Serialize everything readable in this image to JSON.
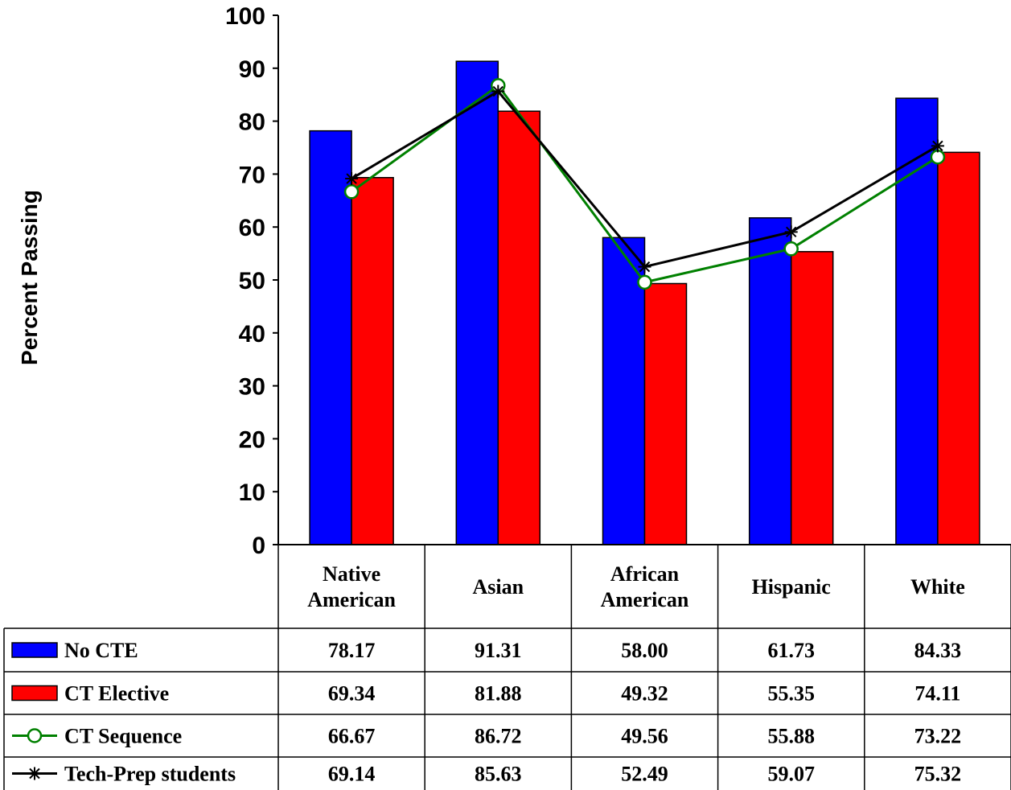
{
  "chart_data": {
    "type": "bar",
    "title": "",
    "xlabel": "",
    "ylabel": "Percent Passing",
    "ylim": [
      0,
      100
    ],
    "yticks": [
      0,
      10,
      20,
      30,
      40,
      50,
      60,
      70,
      80,
      90,
      100
    ],
    "grid": false,
    "legend_placement": "data table below",
    "categories": [
      "Native American",
      "Asian",
      "African American",
      "Hispanic",
      "White"
    ],
    "category_lines": [
      [
        "Native",
        "American"
      ],
      [
        "Asian"
      ],
      [
        "African",
        "American"
      ],
      [
        "Hispanic"
      ],
      [
        "White"
      ]
    ],
    "series": [
      {
        "name": "No CTE",
        "kind": "bar",
        "color": "#0000ff",
        "values": [
          78.17,
          91.31,
          58.0,
          61.73,
          84.33
        ],
        "display": [
          "78.17",
          "91.31",
          "58.00",
          "61.73",
          "84.33"
        ]
      },
      {
        "name": "CT Elective",
        "kind": "bar",
        "color": "#ff0000",
        "values": [
          69.34,
          81.88,
          49.32,
          55.35,
          74.11
        ],
        "display": [
          "69.34",
          "81.88",
          "49.32",
          "55.35",
          "74.11"
        ]
      },
      {
        "name": "CT Sequence",
        "kind": "line",
        "marker": "circle",
        "color": "#008000",
        "values": [
          66.67,
          86.72,
          49.56,
          55.88,
          73.22
        ],
        "display": [
          "66.67",
          "86.72",
          "49.56",
          "55.88",
          "73.22"
        ]
      },
      {
        "name": "Tech-Prep students",
        "kind": "line",
        "marker": "asterisk",
        "color": "#000000",
        "values": [
          69.14,
          85.63,
          52.49,
          59.07,
          75.32
        ],
        "display": [
          "69.14",
          "85.63",
          "52.49",
          "59.07",
          "75.32"
        ]
      }
    ]
  }
}
